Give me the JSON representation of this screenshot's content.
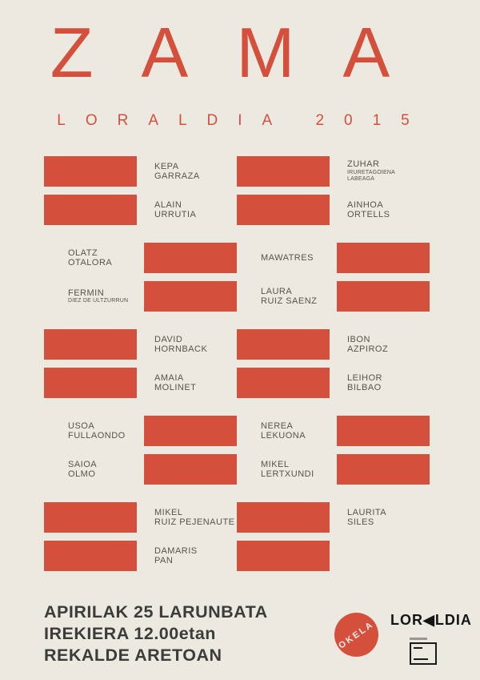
{
  "colors": {
    "accent": "#D4503C",
    "background": "#ECE9E0",
    "dark_text": "#3E3C3A",
    "name_text": "#56534E"
  },
  "header": {
    "title": "ZAMA",
    "subtitle": "LORALDIA 2015"
  },
  "grid": {
    "rows": [
      {
        "order": "block-first",
        "gap": false,
        "left": {
          "lines": [
            {
              "t": "KEPA"
            },
            {
              "t": "GARRAZA"
            }
          ]
        },
        "right": {
          "lines": [
            {
              "t": "ZUHAR"
            },
            {
              "t": "IRURETAGOIENA",
              "s": true
            },
            {
              "t": "LABEAGA",
              "s": true
            }
          ]
        }
      },
      {
        "order": "block-first",
        "gap": false,
        "left": {
          "lines": [
            {
              "t": "ALAIN"
            },
            {
              "t": "URRUTIA"
            }
          ]
        },
        "right": {
          "lines": [
            {
              "t": "AINHOA"
            },
            {
              "t": "ORTELLS"
            }
          ]
        }
      },
      {
        "order": "name-first",
        "gap": true,
        "left": {
          "lines": [
            {
              "t": "OLATZ"
            },
            {
              "t": "OTALORA"
            }
          ]
        },
        "right": {
          "lines": [
            {
              "t": "MAWATRES"
            }
          ]
        }
      },
      {
        "order": "name-first",
        "gap": false,
        "left": {
          "lines": [
            {
              "t": "FERMIN"
            },
            {
              "t": "DIEZ DE ULTZURRUN",
              "s": true
            }
          ]
        },
        "right": {
          "lines": [
            {
              "t": "LAURA"
            },
            {
              "t": "RUIZ SAENZ"
            }
          ]
        }
      },
      {
        "order": "block-first",
        "gap": true,
        "left": {
          "lines": [
            {
              "t": "DAVID"
            },
            {
              "t": "HORNBACK"
            }
          ]
        },
        "right": {
          "lines": [
            {
              "t": "IBON"
            },
            {
              "t": "AZPIROZ"
            }
          ]
        }
      },
      {
        "order": "block-first",
        "gap": false,
        "left": {
          "lines": [
            {
              "t": "AMAIA"
            },
            {
              "t": "MOLINET"
            }
          ]
        },
        "right": {
          "lines": [
            {
              "t": "LEIHOR"
            },
            {
              "t": "BILBAO"
            }
          ]
        }
      },
      {
        "order": "name-first",
        "gap": true,
        "left": {
          "lines": [
            {
              "t": "USOA"
            },
            {
              "t": "FULLAONDO"
            }
          ]
        },
        "right": {
          "lines": [
            {
              "t": "NEREA"
            },
            {
              "t": "LEKUONA"
            }
          ]
        }
      },
      {
        "order": "name-first",
        "gap": false,
        "left": {
          "lines": [
            {
              "t": "SAIOA"
            },
            {
              "t": "OLMO"
            }
          ]
        },
        "right": {
          "lines": [
            {
              "t": "MIKEL"
            },
            {
              "t": "LERTXUNDI"
            }
          ]
        }
      },
      {
        "order": "block-first",
        "gap": true,
        "left": {
          "lines": [
            {
              "t": "MIKEL"
            },
            {
              "t": "RUIZ PEJENAUTE"
            }
          ]
        },
        "right": {
          "lines": [
            {
              "t": "LAURITA"
            },
            {
              "t": "SILES"
            }
          ]
        }
      },
      {
        "order": "block-first",
        "gap": false,
        "left": {
          "lines": [
            {
              "t": "DAMARIS"
            },
            {
              "t": "PAN"
            }
          ]
        },
        "right": {
          "lines": []
        }
      }
    ]
  },
  "footer": {
    "lines": [
      "APIRILAK 25 LARUNBATA",
      "IREKIERA 12.00etan",
      "REKALDE ARETOAN"
    ]
  },
  "logos": {
    "okela": "OKELA",
    "loraldia": "LOR◀LDIA"
  }
}
